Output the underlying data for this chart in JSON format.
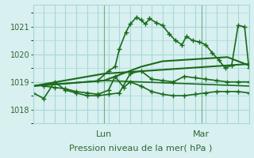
{
  "title": "Pression niveau de la mer( hPa )",
  "bg_color": "#d8f0f0",
  "grid_color": "#a8d8d8",
  "line_color": "#1a6b1a",
  "ylim": [
    1017.5,
    1021.8
  ],
  "yticks": [
    1018,
    1019,
    1020,
    1021
  ],
  "xlabel_lun": 0.33,
  "xlabel_mar": 0.78,
  "series": [
    {
      "x": [
        0,
        0.05,
        0.1,
        0.15,
        0.2,
        0.25,
        0.3,
        0.35,
        0.4,
        0.45,
        0.5,
        0.55,
        0.6,
        0.65,
        0.7,
        0.75,
        0.8,
        0.85,
        0.9,
        0.95,
        1.0
      ],
      "y": [
        1018.6,
        1018.4,
        1019.0,
        1018.7,
        1018.6,
        1018.5,
        1018.5,
        1018.55,
        1018.6,
        1019.3,
        1019.4,
        1019.1,
        1019.05,
        1019.0,
        1019.2,
        1019.15,
        1019.1,
        1019.05,
        1019.0,
        1019.0,
        1019.0
      ],
      "marker": true,
      "lw": 1.2
    },
    {
      "x": [
        0.05,
        0.1,
        0.15,
        0.2,
        0.25,
        0.3,
        0.35,
        0.38,
        0.42,
        0.45,
        0.5,
        0.55,
        0.6,
        0.65,
        0.7,
        0.75,
        0.8,
        0.85,
        0.9,
        0.95,
        1.0
      ],
      "y": [
        1018.85,
        1018.8,
        1018.75,
        1018.65,
        1018.6,
        1018.55,
        1018.7,
        1019.2,
        1018.8,
        1019.0,
        1018.85,
        1018.65,
        1018.55,
        1018.5,
        1018.5,
        1018.55,
        1018.6,
        1018.65,
        1018.65,
        1018.65,
        1018.6
      ],
      "marker": true,
      "lw": 1.2
    },
    {
      "x": [
        0.0,
        0.33,
        1.0
      ],
      "y": [
        1018.85,
        1019.3,
        1019.65
      ],
      "marker": false,
      "lw": 1.5
    },
    {
      "x": [
        0.0,
        0.33,
        1.0
      ],
      "y": [
        1018.85,
        1019.05,
        1018.85
      ],
      "marker": false,
      "lw": 1.2
    },
    {
      "x": [
        0.3,
        0.35,
        0.38,
        0.4,
        0.43,
        0.45,
        0.48,
        0.5,
        0.52,
        0.54,
        0.57,
        0.6,
        0.63,
        0.66,
        0.69,
        0.71,
        0.74,
        0.77,
        0.8,
        0.83,
        0.86,
        0.89,
        0.92,
        0.95,
        0.98,
        1.0
      ],
      "y": [
        1019.05,
        1019.4,
        1019.55,
        1020.2,
        1020.8,
        1021.1,
        1021.35,
        1021.25,
        1021.1,
        1021.3,
        1021.15,
        1021.05,
        1020.75,
        1020.5,
        1020.35,
        1020.65,
        1020.5,
        1020.45,
        1020.35,
        1020.05,
        1019.8,
        1019.5,
        1019.6,
        1021.05,
        1021.0,
        1019.5
      ],
      "marker": true,
      "lw": 1.2
    },
    {
      "x": [
        0.0,
        0.33,
        0.5,
        0.6,
        0.7,
        0.8,
        0.9,
        1.0
      ],
      "y": [
        1018.85,
        1019.05,
        1019.55,
        1019.75,
        1019.8,
        1019.85,
        1019.9,
        1019.6
      ],
      "marker": false,
      "lw": 1.5
    }
  ]
}
